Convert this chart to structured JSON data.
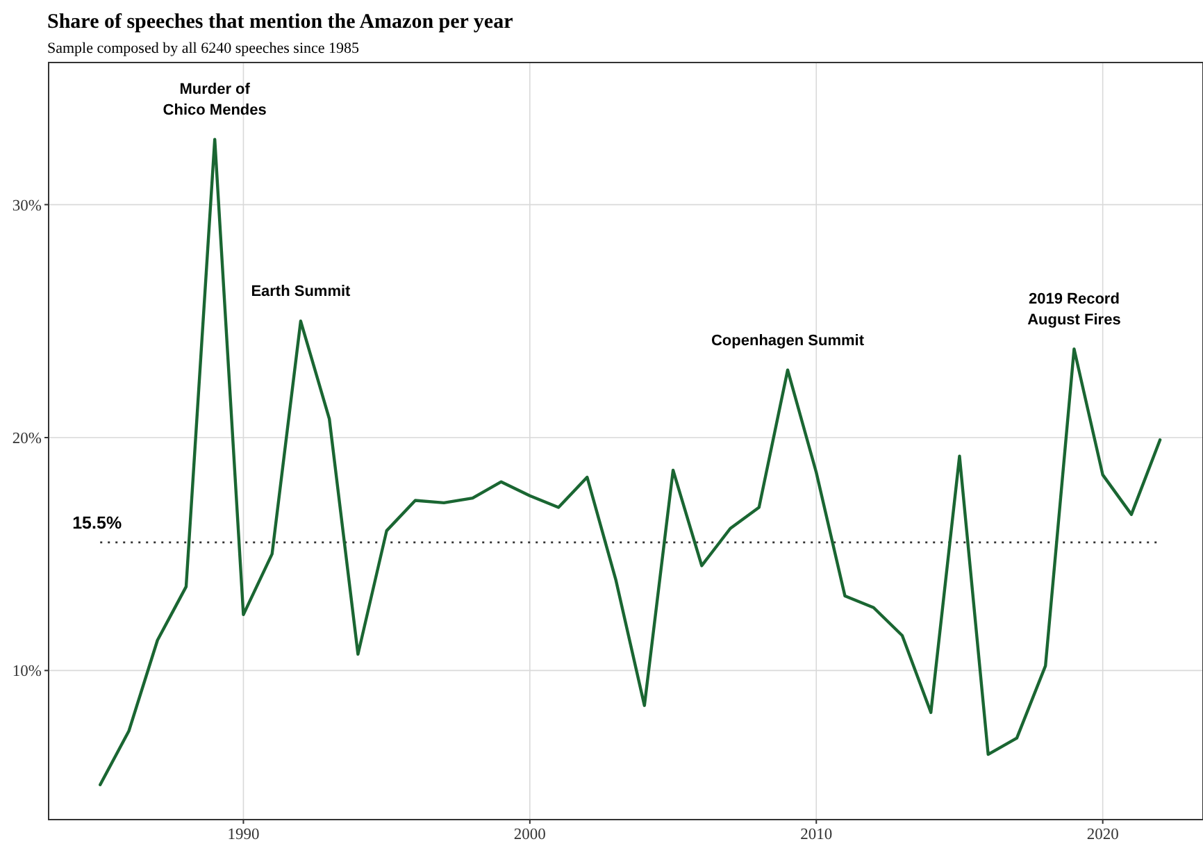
{
  "chart_data": {
    "type": "line",
    "title": "Share of speeches that mention the Amazon per year",
    "subtitle": "Sample composed by all 6240 speeches since 1985",
    "x": [
      1985,
      1986,
      1987,
      1988,
      1989,
      1990,
      1991,
      1992,
      1993,
      1994,
      1995,
      1996,
      1997,
      1998,
      1999,
      2000,
      2001,
      2002,
      2003,
      2004,
      2005,
      2006,
      2007,
      2008,
      2009,
      2010,
      2011,
      2012,
      2013,
      2014,
      2015,
      2016,
      2017,
      2018,
      2019,
      2020,
      2021,
      2022
    ],
    "series": [
      {
        "color": "#1a6632",
        "values": [
          5.1,
          7.4,
          11.3,
          13.6,
          32.8,
          12.4,
          15.0,
          25.0,
          20.8,
          10.7,
          16.0,
          17.3,
          17.2,
          17.4,
          18.1,
          17.5,
          17.0,
          18.3,
          13.9,
          8.5,
          18.6,
          14.5,
          16.1,
          17.0,
          22.9,
          18.5,
          13.2,
          12.7,
          11.5,
          8.2,
          19.2,
          6.4,
          7.1,
          10.2,
          23.8,
          18.4,
          16.7,
          19.9
        ]
      }
    ],
    "xlim": [
      1983.2,
      2023.5
    ],
    "ylim": [
      3.6,
      36.1
    ],
    "xticks": [
      1990,
      2000,
      2010,
      2020
    ],
    "yticks": [
      {
        "value": 10,
        "label": "10%"
      },
      {
        "value": 20,
        "label": "20%"
      },
      {
        "value": 30,
        "label": "30%"
      }
    ],
    "grid": true,
    "line_style": "solid",
    "marker": "none",
    "ref_lines": [
      {
        "axis": "y",
        "value": 15.5,
        "label": "15.5%",
        "color": "#333333",
        "line_style": "dotted"
      }
    ],
    "annotations": [
      {
        "text": "Murder of\nChico Mendes",
        "x": 1989,
        "y": 32.8
      },
      {
        "text": "Earth Summit",
        "x": 1992,
        "y": 25.0
      },
      {
        "text": "Copenhagen Summit",
        "x": 2009,
        "y": 22.9
      },
      {
        "text": "2019 Record\nAugust Fires",
        "x": 2019,
        "y": 23.8
      }
    ]
  }
}
